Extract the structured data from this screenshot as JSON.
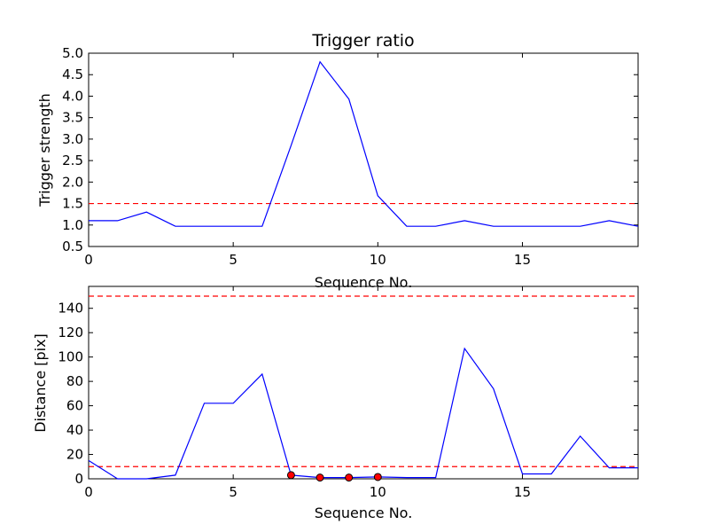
{
  "chart_data": [
    {
      "type": "line",
      "title": "Trigger ratio",
      "xlabel": "Sequence No.",
      "ylabel": "Trigger strength",
      "xlim": [
        0,
        19
      ],
      "ylim": [
        0.5,
        5.0
      ],
      "xticks": [
        0,
        5,
        10,
        15
      ],
      "yticks": [
        0.5,
        1.0,
        1.5,
        2.0,
        2.5,
        3.0,
        3.5,
        4.0,
        4.5,
        5.0
      ],
      "ytick_decimals": 1,
      "grid": false,
      "series": [
        {
          "color": "#0000ff",
          "x": [
            0,
            1,
            2,
            3,
            4,
            5,
            6,
            7,
            8,
            9,
            10,
            11,
            12,
            13,
            14,
            15,
            16,
            17,
            18,
            19
          ],
          "y": [
            1.1,
            1.1,
            1.3,
            0.97,
            0.97,
            0.97,
            0.97,
            2.85,
            4.8,
            3.93,
            1.68,
            0.97,
            0.97,
            1.1,
            0.97,
            0.97,
            0.97,
            0.97,
            1.1,
            0.97
          ]
        }
      ],
      "threshold_lines": [
        {
          "y": 1.5,
          "color": "#ff0000",
          "style": "dashed"
        }
      ],
      "markers": []
    },
    {
      "type": "line",
      "title": "",
      "xlabel": "Sequence No.",
      "ylabel": "Distance [pix]",
      "xlim": [
        0,
        19
      ],
      "ylim": [
        0,
        158
      ],
      "xticks": [
        0,
        5,
        10,
        15
      ],
      "yticks": [
        0,
        20,
        40,
        60,
        80,
        100,
        120,
        140
      ],
      "ytick_decimals": 0,
      "grid": false,
      "series": [
        {
          "color": "#0000ff",
          "x": [
            0,
            1,
            2,
            3,
            4,
            5,
            6,
            7,
            8,
            9,
            10,
            11,
            12,
            13,
            14,
            15,
            16,
            17,
            18,
            19
          ],
          "y": [
            15,
            0,
            0,
            3,
            62,
            62,
            86,
            3,
            1,
            1,
            1.5,
            1,
            1,
            107,
            74,
            4,
            4,
            35,
            9,
            9
          ]
        }
      ],
      "threshold_lines": [
        {
          "y": 150,
          "color": "#ff0000",
          "style": "dashed"
        },
        {
          "y": 10,
          "color": "#ff0000",
          "style": "dashed"
        }
      ],
      "markers": [
        {
          "x": 7,
          "y": 3,
          "color": "#ff0000"
        },
        {
          "x": 8,
          "y": 1,
          "color": "#ff0000"
        },
        {
          "x": 9,
          "y": 1,
          "color": "#ff0000"
        },
        {
          "x": 10,
          "y": 1.5,
          "color": "#ff0000"
        }
      ]
    }
  ]
}
